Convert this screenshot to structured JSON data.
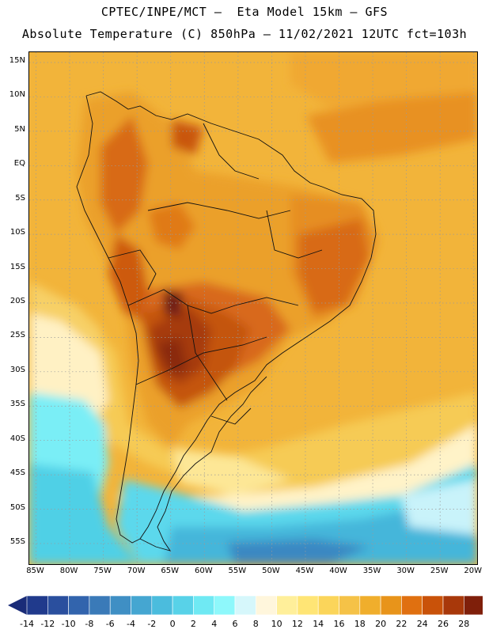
{
  "title": {
    "line1": "CPTEC/INPE/MCT –  Eta Model 15km – GFS",
    "line2": "Absolute Temperature (C) 850hPa – 11/02/2021 12UTC fct=103h"
  },
  "map": {
    "lat_labels": [
      "15N",
      "10N",
      "5N",
      "EQ",
      "5S",
      "10S",
      "15S",
      "20S",
      "25S",
      "30S",
      "35S",
      "40S",
      "45S",
      "50S",
      "55S"
    ],
    "lon_labels": [
      "85W",
      "80W",
      "75W",
      "70W",
      "65W",
      "60W",
      "55W",
      "50W",
      "45W",
      "40W",
      "35W",
      "30W",
      "25W",
      "20W"
    ],
    "lat_range": [
      -58,
      16.5
    ],
    "lon_range": [
      -86,
      -19.5
    ],
    "grid_style": "dotted"
  },
  "colorbar": {
    "labels": [
      "-14",
      "-12",
      "-10",
      "-8",
      "-6",
      "-4",
      "-2",
      "0",
      "2",
      "4",
      "6",
      "8",
      "10",
      "12",
      "14",
      "16",
      "18",
      "20",
      "22",
      "24",
      "26",
      "28"
    ],
    "colors": [
      "#203a8c",
      "#2a4f9e",
      "#3264ad",
      "#3a7ab8",
      "#3f8fc4",
      "#45a6d1",
      "#4bbcdd",
      "#58d2e8",
      "#6fe9f3",
      "#8ef8fb",
      "#d6f7fb",
      "#fff6dc",
      "#ffef9a",
      "#ffe575",
      "#fbd55a",
      "#f5c247",
      "#f0ae2c",
      "#e8941a",
      "#e07010",
      "#c95209",
      "#a8380a",
      "#7f1f0a"
    ],
    "under_color": "#1a2c78",
    "over_color": "#6a0b2a"
  }
}
